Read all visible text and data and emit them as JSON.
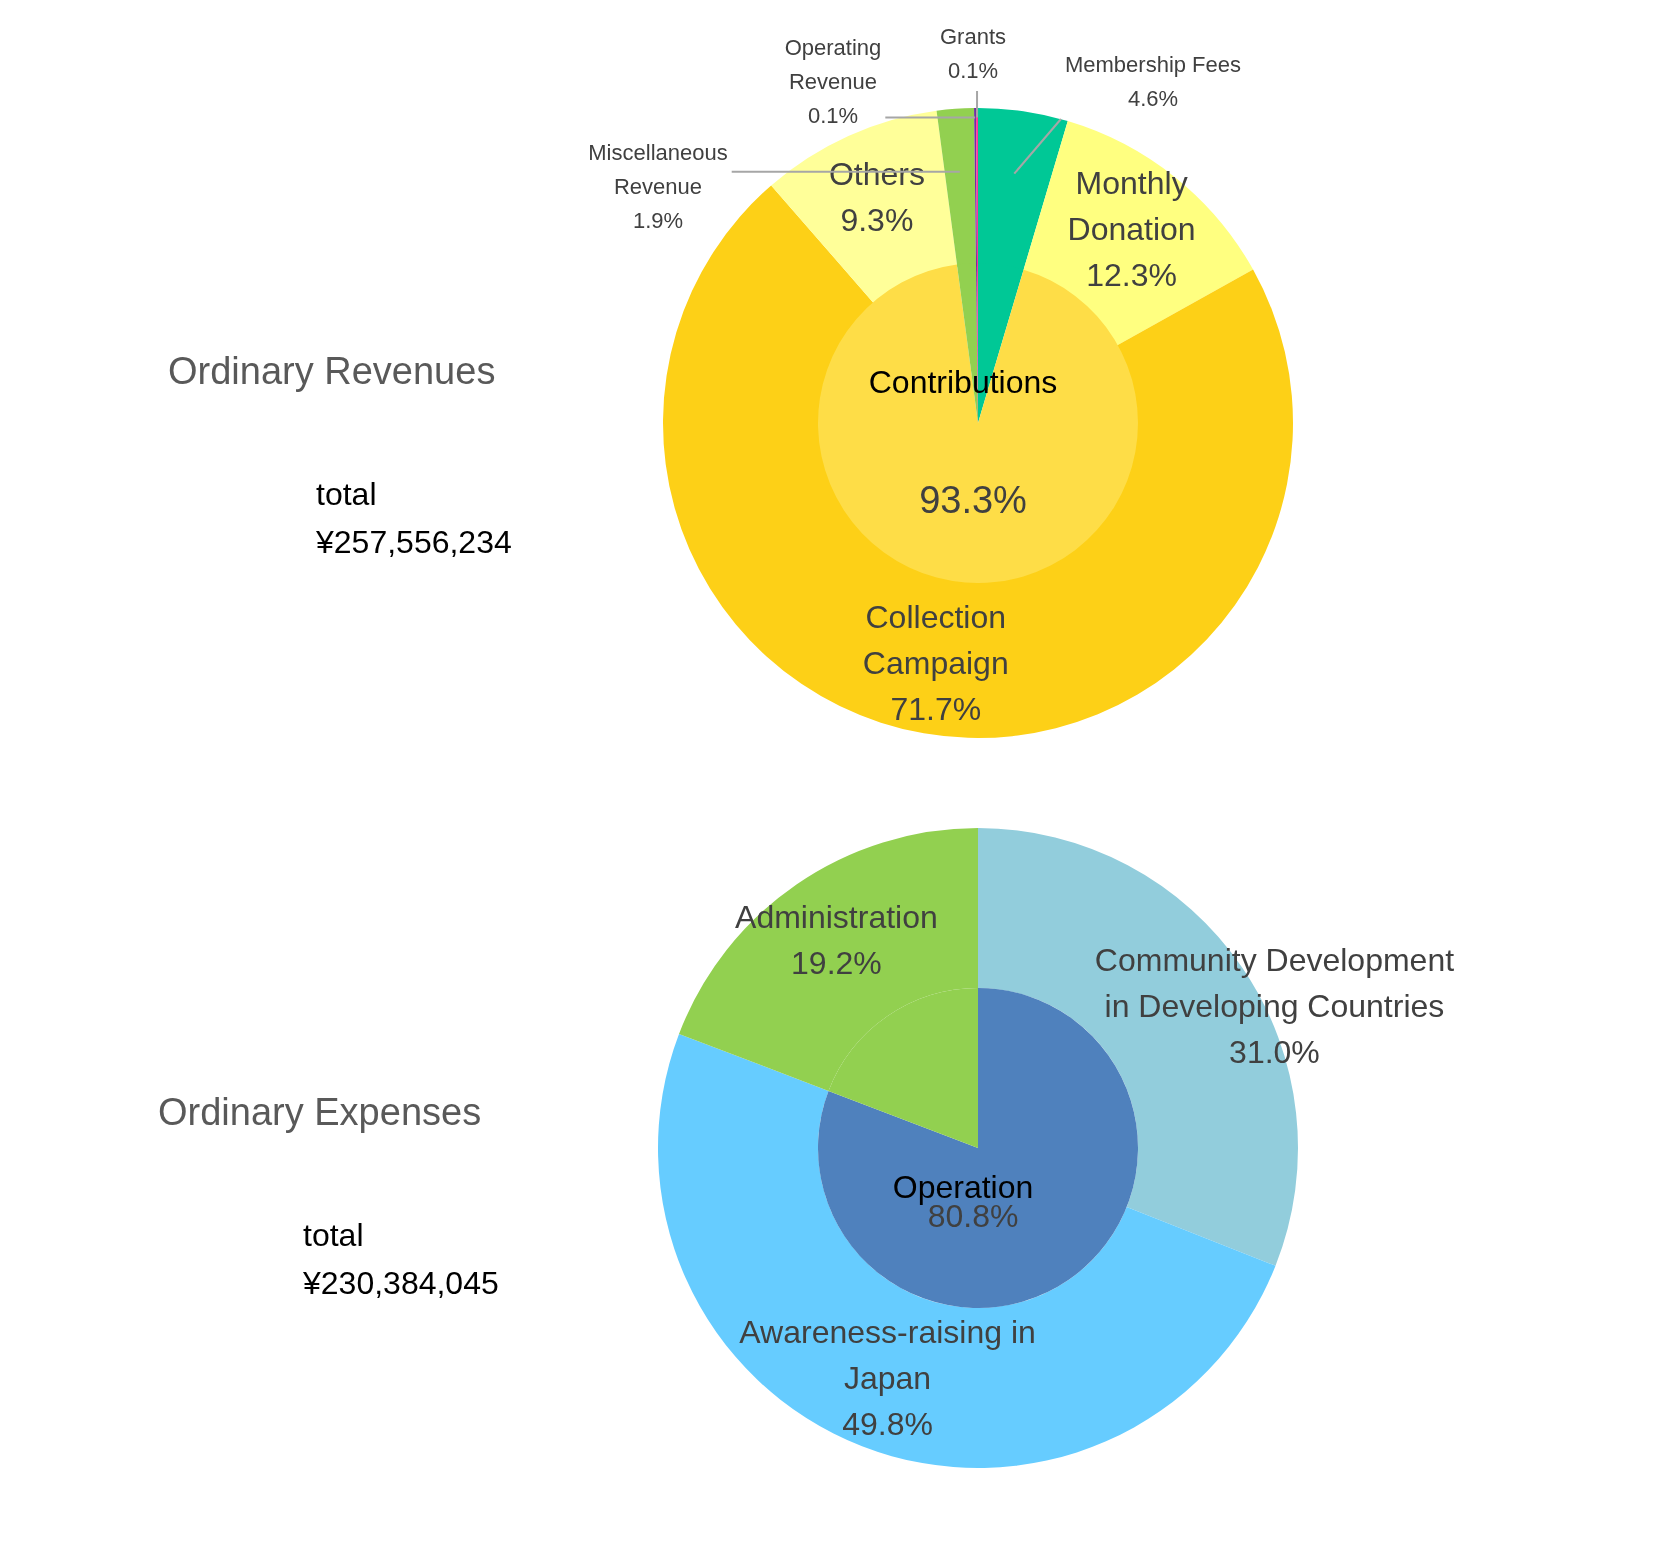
{
  "chart_data": [
    {
      "type": "donut",
      "title": "Ordinary Revenues",
      "categories": [
        "Membership Fees",
        "Monthly Donation",
        "Collection Campaign",
        "Others",
        "Miscellaneous Revenue",
        "Operating Revenue",
        "Grants"
      ],
      "values": [
        4.6,
        12.3,
        71.7,
        9.3,
        1.9,
        0.1,
        0.1
      ],
      "colors": [
        "#00c896",
        "#ffff80",
        "#fdd017",
        "#ffff99",
        "#92d050",
        "#7030a0",
        "#ff3399"
      ],
      "value_labels": [
        "4.6%",
        "12.3%",
        "71.7%",
        "9.3%",
        "1.9%",
        "0.1%",
        "0.1%"
      ],
      "annotations": [
        "total",
        "¥257,556,234"
      ]
    },
    {
      "type": "pie",
      "categories": [
        null,
        "Contributions",
        null,
        null,
        null
      ],
      "values": [
        4.6,
        93.3,
        1.9,
        0.1,
        0.1
      ],
      "colors": [
        "#00c896",
        "#fedd47",
        "#92d050",
        "#7030a0",
        "#ff3399"
      ],
      "value_labels": [
        null,
        "93.3%",
        null,
        null,
        null
      ]
    },
    {
      "type": "donut",
      "title": "Ordinary Expenses",
      "categories": [
        "Community Development in Developing Countries",
        "Awareness-raising in Japan",
        "Administration"
      ],
      "values": [
        31.0,
        49.8,
        19.2
      ],
      "colors": [
        "#92cddc",
        "#66ccff",
        "#92d050"
      ],
      "value_labels": [
        "31.0%",
        "49.8%",
        "19.2%"
      ],
      "annotations": [
        "total",
        "¥230,384,045"
      ]
    },
    {
      "type": "pie",
      "categories": [
        "Operation",
        null
      ],
      "values": [
        80.8,
        19.2
      ],
      "colors": [
        "#4f81bd",
        "#92d050"
      ],
      "value_labels": [
        "80.8%",
        null
      ]
    }
  ]
}
